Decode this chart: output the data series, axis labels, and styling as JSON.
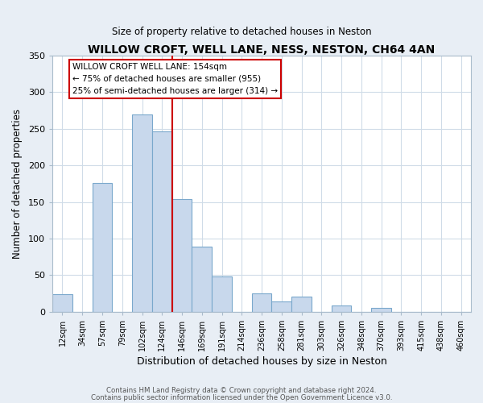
{
  "title": "WILLOW CROFT, WELL LANE, NESS, NESTON, CH64 4AN",
  "subtitle": "Size of property relative to detached houses in Neston",
  "xlabel": "Distribution of detached houses by size in Neston",
  "ylabel": "Number of detached properties",
  "bar_color": "#c8d8ec",
  "bar_edge_color": "#7aa8cc",
  "categories": [
    "12sqm",
    "34sqm",
    "57sqm",
    "79sqm",
    "102sqm",
    "124sqm",
    "146sqm",
    "169sqm",
    "191sqm",
    "214sqm",
    "236sqm",
    "258sqm",
    "281sqm",
    "303sqm",
    "326sqm",
    "348sqm",
    "370sqm",
    "393sqm",
    "415sqm",
    "438sqm",
    "460sqm"
  ],
  "values": [
    24,
    0,
    176,
    0,
    270,
    246,
    154,
    89,
    48,
    0,
    25,
    14,
    21,
    0,
    8,
    0,
    5,
    0,
    0,
    0,
    0
  ],
  "ylim": [
    0,
    350
  ],
  "yticks": [
    0,
    50,
    100,
    150,
    200,
    250,
    300,
    350
  ],
  "vline_color": "#cc0000",
  "annotation_title": "WILLOW CROFT WELL LANE: 154sqm",
  "annotation_line1": "← 75% of detached houses are smaller (955)",
  "annotation_line2": "25% of semi-detached houses are larger (314) →",
  "annotation_box_color": "#ffffff",
  "annotation_box_edge": "#cc0000",
  "footer1": "Contains HM Land Registry data © Crown copyright and database right 2024.",
  "footer2": "Contains public sector information licensed under the Open Government Licence v3.0.",
  "background_color": "#e8eef5",
  "plot_background": "#ffffff",
  "spine_color": "#aabccc",
  "grid_color": "#d0dce8"
}
